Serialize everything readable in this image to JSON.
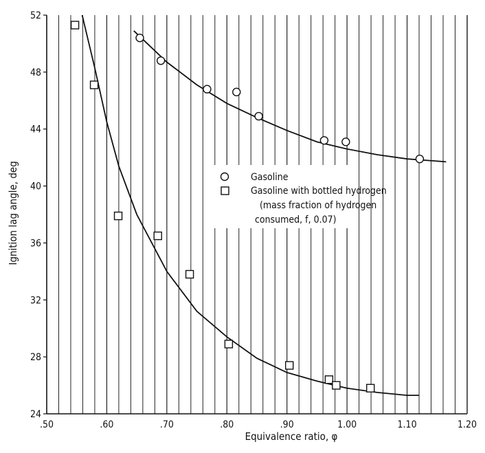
{
  "chart_data": {
    "type": "scatter",
    "xlabel": "Equivalence ratio, φ",
    "ylabel": "Ignition lag angle, deg",
    "xlim": [
      0.5,
      1.2
    ],
    "ylim": [
      24,
      52
    ],
    "x_tick_labels": [
      ".50",
      ".60",
      ".70",
      ".80",
      ".90",
      "1.00",
      "1.10",
      "1.20"
    ],
    "x_tick_values": [
      0.5,
      0.6,
      0.7,
      0.8,
      0.9,
      1.0,
      1.1,
      1.2
    ],
    "y_tick_labels": [
      "24",
      "28",
      "32",
      "36",
      "40",
      "44",
      "48",
      "52"
    ],
    "y_tick_values": [
      24,
      28,
      32,
      36,
      40,
      44,
      48,
      52
    ],
    "grid": "vertical",
    "legend": {
      "placement": "center-right",
      "entries": [
        {
          "marker": "circle",
          "label": "Gasoline",
          "note": ""
        },
        {
          "marker": "square",
          "label": "Gasoline with bottled hydrogen",
          "note": [
            "(mass fraction of hydrogen",
            "consumed, f, 0.07)"
          ]
        }
      ]
    },
    "series": [
      {
        "name": "Gasoline",
        "marker": "circle",
        "points": [
          [
            0.655,
            50.4
          ],
          [
            0.69,
            48.8
          ],
          [
            0.767,
            46.8
          ],
          [
            0.816,
            46.6
          ],
          [
            0.853,
            44.9
          ],
          [
            0.962,
            43.2
          ],
          [
            0.998,
            43.1
          ],
          [
            1.121,
            41.9
          ]
        ],
        "fit_curve": [
          [
            0.645,
            50.9
          ],
          [
            0.7,
            48.7
          ],
          [
            0.75,
            47.1
          ],
          [
            0.8,
            45.8
          ],
          [
            0.85,
            44.8
          ],
          [
            0.9,
            43.9
          ],
          [
            0.95,
            43.1
          ],
          [
            1.0,
            42.6
          ],
          [
            1.05,
            42.2
          ],
          [
            1.1,
            41.9
          ],
          [
            1.165,
            41.7
          ]
        ]
      },
      {
        "name": "Gasoline with bottled hydrogen",
        "marker": "square",
        "points": [
          [
            0.547,
            51.3
          ],
          [
            0.579,
            47.1
          ],
          [
            0.619,
            37.9
          ],
          [
            0.685,
            36.5
          ],
          [
            0.738,
            33.8
          ],
          [
            0.803,
            28.9
          ],
          [
            0.904,
            27.4
          ],
          [
            0.97,
            26.4
          ],
          [
            0.982,
            26.0
          ],
          [
            1.039,
            25.8
          ]
        ],
        "fit_curve": [
          [
            0.559,
            52.0
          ],
          [
            0.58,
            48.3
          ],
          [
            0.6,
            44.5
          ],
          [
            0.62,
            41.4
          ],
          [
            0.65,
            38.0
          ],
          [
            0.7,
            34.0
          ],
          [
            0.75,
            31.2
          ],
          [
            0.8,
            29.4
          ],
          [
            0.85,
            27.9
          ],
          [
            0.9,
            26.9
          ],
          [
            0.95,
            26.3
          ],
          [
            1.0,
            25.8
          ],
          [
            1.05,
            25.5
          ],
          [
            1.1,
            25.3
          ],
          [
            1.12,
            25.3
          ]
        ]
      }
    ]
  }
}
